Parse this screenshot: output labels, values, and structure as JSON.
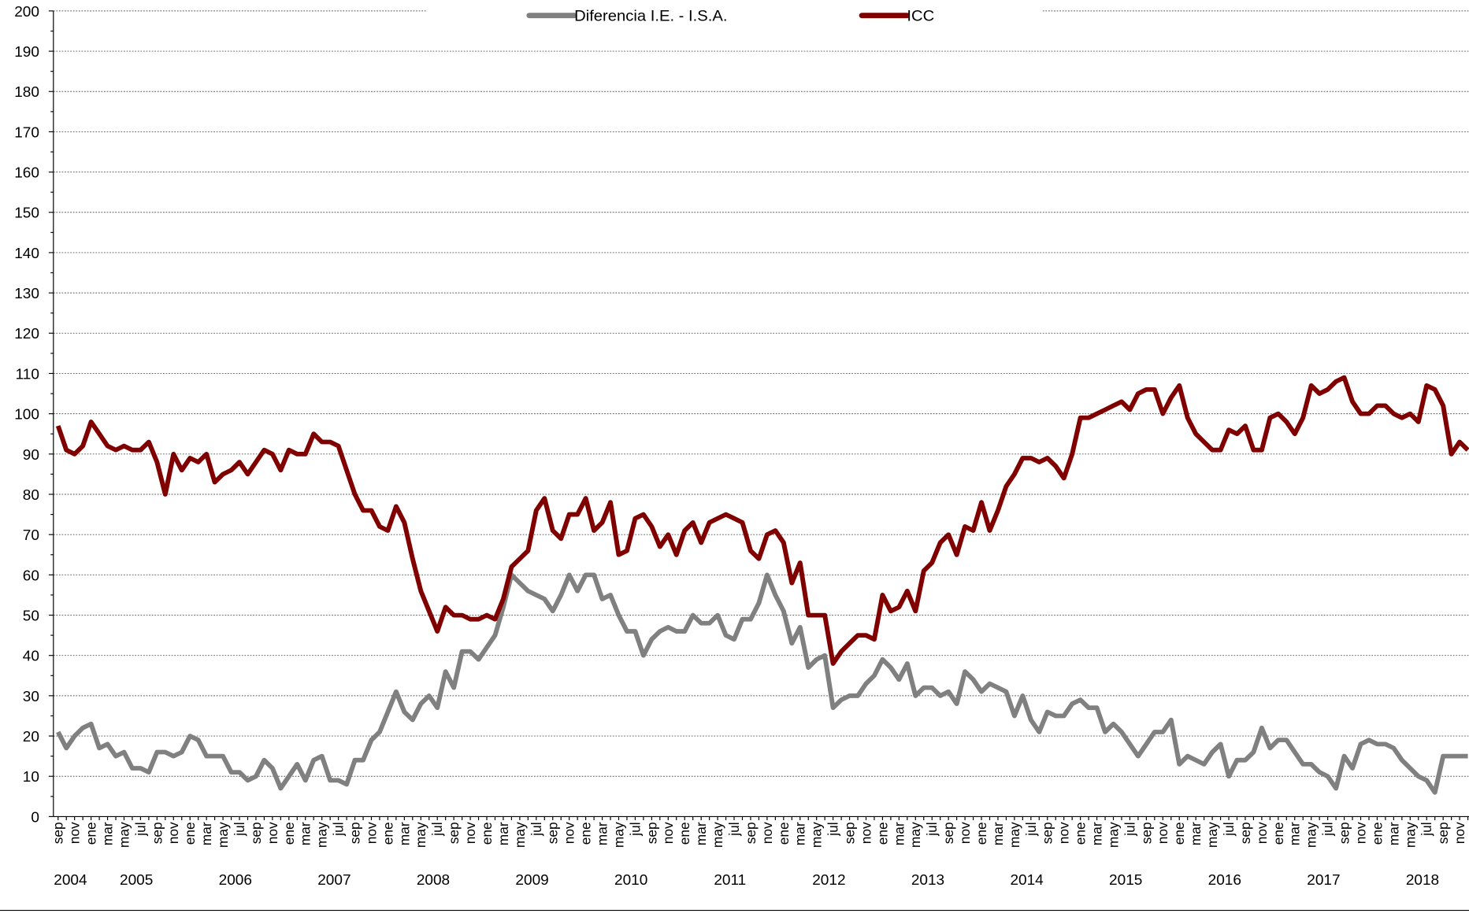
{
  "chart_data": {
    "type": "line",
    "categories": [
      "sep",
      null,
      "nov",
      null,
      "ene",
      null,
      "mar",
      null,
      "may",
      null,
      "jul",
      null,
      "sep",
      null,
      "nov",
      null,
      "ene",
      null,
      "mar",
      null,
      "may",
      null,
      "jul",
      null,
      "sep",
      null,
      "nov",
      null,
      "ene",
      null,
      "mar",
      null,
      "may",
      null,
      "jul",
      null,
      "sep",
      null,
      "nov",
      null,
      "ene",
      null,
      "mar",
      null,
      "may",
      null,
      "jul",
      null,
      "sep",
      null,
      "nov",
      null,
      "ene",
      null,
      "mar",
      null,
      "may",
      null,
      "jul",
      null,
      "sep",
      null,
      "nov",
      null,
      "ene",
      null,
      "mar",
      null,
      "may",
      null,
      "jul",
      null,
      "sep",
      null,
      "nov",
      null,
      "ene",
      null,
      "mar",
      null,
      "may",
      null,
      "jul",
      null,
      "sep",
      null,
      "nov",
      null,
      "ene",
      null,
      "mar",
      null,
      "may",
      null,
      "jul",
      null,
      "sep",
      null,
      "nov",
      null,
      "ene",
      null,
      "mar",
      null,
      "may",
      null,
      "jul",
      null,
      "sep",
      null,
      "nov",
      null,
      "ene",
      null,
      "mar",
      null,
      "may",
      null,
      "jul",
      null,
      "sep",
      null,
      "nov",
      null,
      "ene",
      null,
      "mar",
      null,
      "may",
      null,
      "jul",
      null,
      "sep",
      null,
      "nov",
      null,
      "ene",
      null,
      "mar",
      null,
      "may",
      null,
      "jul",
      null,
      "sep",
      null,
      "nov",
      null,
      "ene",
      null,
      "mar",
      null,
      "may",
      null,
      "jul",
      null,
      "sep",
      null,
      "nov",
      null,
      "ene",
      null,
      "mar",
      null,
      "may",
      null,
      "jul",
      null,
      "sep",
      null,
      "nov",
      null
    ],
    "x_groups": [
      "2004",
      "2005",
      "2006",
      "2007",
      "2008",
      "2009",
      "2010",
      "2011",
      "2012",
      "2013",
      "2014",
      "2015",
      "2016",
      "2017",
      "2018"
    ],
    "series": [
      {
        "name": "Diferencia I.E. - I.S.A.",
        "color": "#808080",
        "values": [
          21,
          17,
          20,
          22,
          23,
          17,
          18,
          15,
          16,
          12,
          12,
          11,
          16,
          16,
          15,
          16,
          20,
          19,
          15,
          15,
          15,
          11,
          11,
          9,
          10,
          14,
          12,
          7,
          10,
          13,
          9,
          14,
          15,
          9,
          9,
          8,
          14,
          14,
          19,
          21,
          26,
          31,
          26,
          24,
          28,
          30,
          27,
          36,
          32,
          41,
          41,
          39,
          42,
          45,
          52,
          60,
          58,
          56,
          55,
          54,
          51,
          55,
          60,
          56,
          60,
          60,
          54,
          55,
          50,
          46,
          46,
          40,
          44,
          46,
          47,
          46,
          46,
          50,
          48,
          48,
          50,
          45,
          44,
          49,
          49,
          53,
          60,
          55,
          51,
          43,
          47,
          37,
          39,
          40,
          27,
          29,
          30,
          30,
          33,
          35,
          39,
          37,
          34,
          38,
          30,
          32,
          32,
          30,
          31,
          28,
          36,
          34,
          31,
          33,
          32,
          31,
          25,
          30,
          24,
          21,
          26,
          25,
          25,
          28,
          29,
          27,
          27,
          21,
          23,
          21,
          18,
          15,
          18,
          21,
          21,
          24,
          13,
          15,
          14,
          13,
          16,
          18,
          10,
          14,
          14,
          16,
          22,
          17,
          19,
          19,
          16,
          13,
          13,
          11,
          10,
          7,
          15,
          12,
          18,
          19,
          18,
          18,
          17,
          14,
          12,
          10,
          9,
          6,
          15,
          15,
          15,
          15
        ]
      },
      {
        "name": "ICC",
        "color": "#800000",
        "values": [
          97,
          91,
          90,
          92,
          98,
          95,
          92,
          91,
          92,
          91,
          91,
          93,
          88,
          80,
          90,
          86,
          89,
          88,
          90,
          83,
          85,
          86,
          88,
          85,
          88,
          91,
          90,
          86,
          91,
          90,
          90,
          95,
          93,
          93,
          92,
          86,
          80,
          76,
          76,
          72,
          71,
          77,
          73,
          64,
          56,
          51,
          46,
          52,
          50,
          50,
          49,
          49,
          50,
          49,
          54,
          62,
          64,
          66,
          76,
          79,
          71,
          69,
          75,
          75,
          79,
          71,
          73,
          78,
          65,
          66,
          74,
          75,
          72,
          67,
          70,
          65,
          71,
          73,
          68,
          73,
          74,
          75,
          74,
          73,
          66,
          64,
          70,
          71,
          68,
          58,
          63,
          50,
          50,
          50,
          38,
          41,
          43,
          45,
          45,
          44,
          55,
          51,
          52,
          56,
          51,
          61,
          63,
          68,
          70,
          65,
          72,
          71,
          78,
          71,
          76,
          82,
          85,
          89,
          89,
          88,
          89,
          87,
          84,
          90,
          99,
          99,
          100,
          101,
          102,
          103,
          101,
          105,
          106,
          106,
          100,
          104,
          107,
          99,
          95,
          93,
          91,
          91,
          96,
          95,
          97,
          91,
          91,
          99,
          100,
          98,
          95,
          99,
          107,
          105,
          106,
          108,
          109,
          103,
          100,
          100,
          102,
          102,
          100,
          99,
          100,
          98,
          107,
          106,
          102,
          90,
          93,
          91
        ]
      }
    ],
    "ylim": [
      0,
      200
    ],
    "yticks": [
      0,
      10,
      20,
      30,
      40,
      50,
      60,
      70,
      80,
      90,
      100,
      110,
      120,
      130,
      140,
      150,
      160,
      170,
      180,
      190,
      200
    ],
    "grid": true,
    "legend": "top"
  }
}
